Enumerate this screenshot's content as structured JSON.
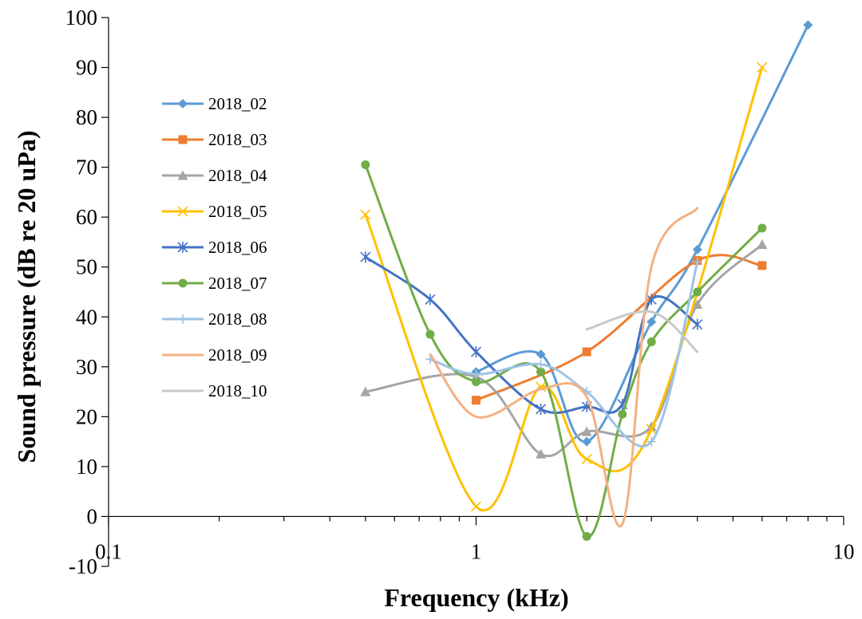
{
  "chart_data": {
    "type": "line",
    "title": "",
    "xlabel": "Frequency (kHz)",
    "ylabel": "Sound pressure (dB re 20 uPa)",
    "x_scale": "log",
    "xlim": [
      0.1,
      10
    ],
    "ylim": [
      -10,
      100
    ],
    "x_ticks": [
      0.1,
      1,
      10
    ],
    "x_tick_labels": [
      "0.1",
      "1",
      "10"
    ],
    "y_ticks": [
      -10,
      0,
      10,
      20,
      30,
      40,
      50,
      60,
      70,
      80,
      90,
      100
    ],
    "grid": false,
    "legend_position": "left",
    "series": [
      {
        "name": "2018_02",
        "color": "#5B9BD5",
        "marker": "diamond",
        "x": [
          1,
          1.5,
          2,
          3,
          4,
          8
        ],
        "y": [
          29,
          32.5,
          15,
          39,
          53.5,
          98.5
        ]
      },
      {
        "name": "2018_03",
        "color": "#ED7D31",
        "marker": "square",
        "x": [
          1,
          2,
          4,
          6
        ],
        "y": [
          23.3,
          33,
          51.3,
          50.3
        ]
      },
      {
        "name": "2018_04",
        "color": "#A5A5A5",
        "marker": "triangle",
        "x": [
          0.5,
          1,
          1.5,
          2,
          3,
          4,
          6
        ],
        "y": [
          25,
          28,
          12.5,
          17,
          18,
          42.5,
          54.5
        ]
      },
      {
        "name": "2018_05",
        "color": "#FFC000",
        "marker": "x",
        "x": [
          0.5,
          1,
          1.5,
          2,
          3,
          6
        ],
        "y": [
          60.5,
          2,
          26,
          11.5,
          17.5,
          90
        ]
      },
      {
        "name": "2018_06",
        "color": "#4472C4",
        "marker": "star",
        "x": [
          0.5,
          0.75,
          1,
          1.5,
          2,
          2.5,
          3,
          4
        ],
        "y": [
          52,
          43.5,
          33,
          21.5,
          22,
          22.5,
          43.5,
          38.5
        ]
      },
      {
        "name": "2018_07",
        "color": "#70AD47",
        "marker": "circle",
        "x": [
          0.5,
          0.75,
          1,
          1.5,
          2,
          2.5,
          3,
          4,
          6
        ],
        "y": [
          70.5,
          36.5,
          27,
          29,
          -4,
          20.5,
          35,
          45,
          57.8
        ]
      },
      {
        "name": "2018_08",
        "color": "#9DC3E6",
        "marker": "plus",
        "x": [
          0.75,
          1,
          1.5,
          2,
          3,
          4
        ],
        "y": [
          31.5,
          28.5,
          30.5,
          25,
          15,
          51
        ]
      },
      {
        "name": "2018_09",
        "color": "#F4B183",
        "marker": "none",
        "x": [
          0.75,
          1,
          1.5,
          2,
          2.5,
          3,
          4
        ],
        "y": [
          32.5,
          20,
          25.5,
          24,
          -1.5,
          50,
          61.8
        ]
      },
      {
        "name": "2018_10",
        "color": "#C9C9C9",
        "marker": "none",
        "x": [
          2,
          3,
          4
        ],
        "y": [
          37.5,
          41,
          33
        ]
      }
    ]
  }
}
